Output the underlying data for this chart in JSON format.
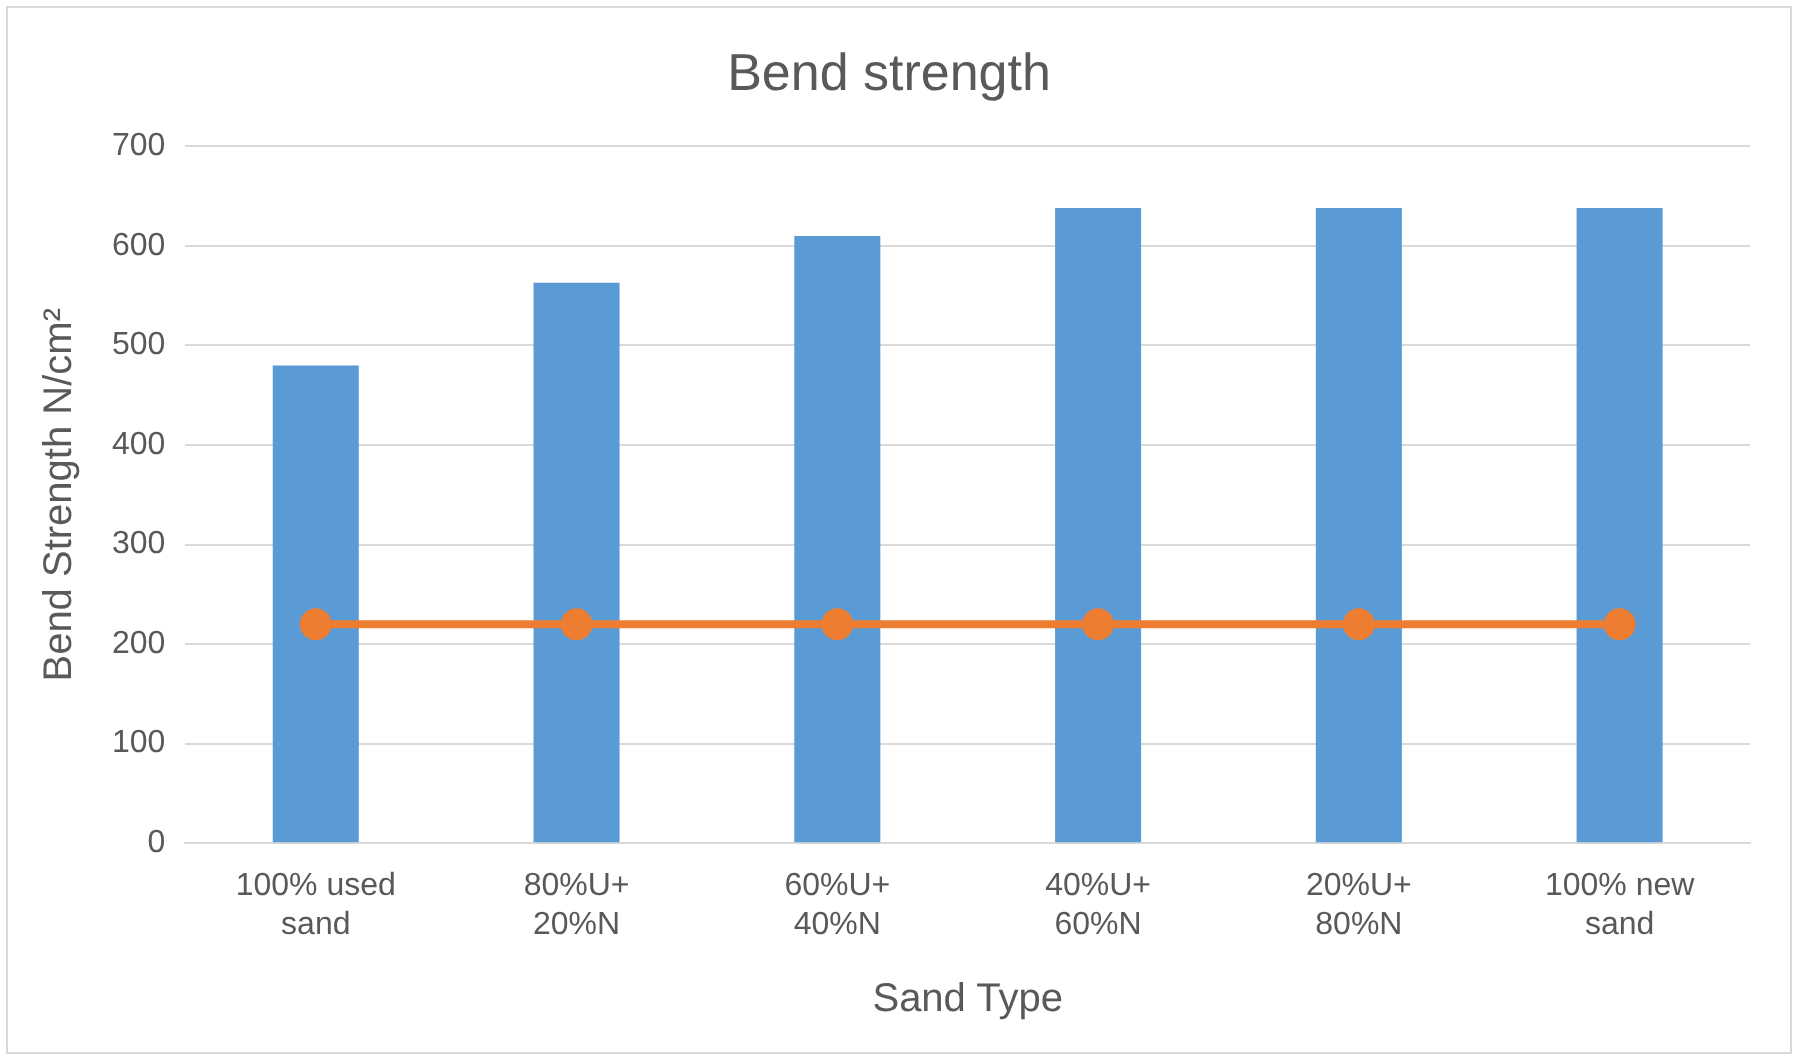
{
  "chart_data": {
    "type": "bar",
    "title": "Bend strength",
    "xlabel": "Sand Type",
    "ylabel": "Bend Strength N/cm²",
    "categories": [
      "100% used sand",
      "80%U+ 20%N",
      "60%U+ 40%N",
      "40%U+ 60%N",
      "20%U+ 80%N",
      "100% new sand"
    ],
    "series": [
      {
        "color": "#5b9bd5",
        "values": [
          480,
          563,
          610,
          638,
          638,
          638
        ]
      },
      {
        "type": "line",
        "color": "#ed7d31",
        "values": [
          220,
          220,
          220,
          220,
          220,
          220
        ],
        "marker": "circle",
        "line_style": "solid"
      }
    ],
    "ylim": [
      0,
      700
    ],
    "yticks": [
      0,
      100,
      200,
      300,
      400,
      500,
      600,
      700
    ],
    "grid": "y",
    "legend": false
  }
}
